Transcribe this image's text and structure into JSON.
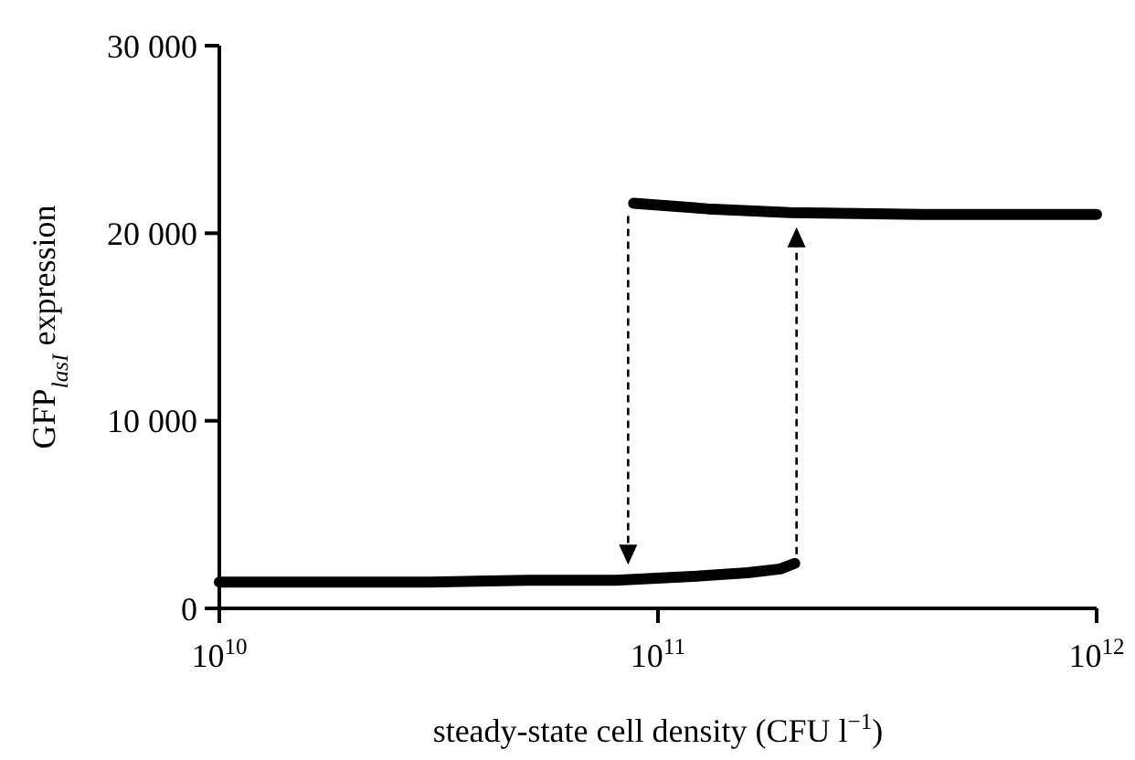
{
  "chart_data": {
    "type": "line",
    "xlabel": "steady-state cell density (CFU l$^{−1}$)",
    "ylabel": "GFP$_{lasI}$ expression",
    "log": "x",
    "xlim": [
      10000000000.0,
      1000000000000.0
    ],
    "ylim": [
      0,
      30000
    ],
    "xticks": [
      {
        "value": 10000000000.0,
        "label": "10$^{10}$"
      },
      {
        "value": 100000000000.0,
        "label": "10$^{11}$"
      },
      {
        "value": 1000000000000.0,
        "label": "10$^{12}$"
      }
    ],
    "yticks": [
      0,
      {
        "value": 10000,
        "label": "10 000"
      },
      {
        "value": 20000,
        "label": "20 000"
      },
      {
        "value": 30000,
        "label": "30 000"
      }
    ],
    "marker": "none",
    "line_style": "solid",
    "series": [
      {
        "color": "#000000",
        "x": [
          10000000000.0,
          30000000000.0,
          50000000000.0,
          80000000000.0,
          120000000000.0,
          160000000000.0,
          190000000000.0,
          205000000000.0
        ],
        "values": [
          1400,
          1400,
          1500,
          1500,
          1700,
          1900,
          2100,
          2400
        ]
      },
      {
        "color": "#000000",
        "x": [
          88000000000.0,
          100000000000.0,
          130000000000.0,
          200000000000.0,
          400000000000.0,
          1000000000000.0
        ],
        "values": [
          21600,
          21500,
          21300,
          21100,
          21000,
          21000
        ]
      }
    ]
  }
}
